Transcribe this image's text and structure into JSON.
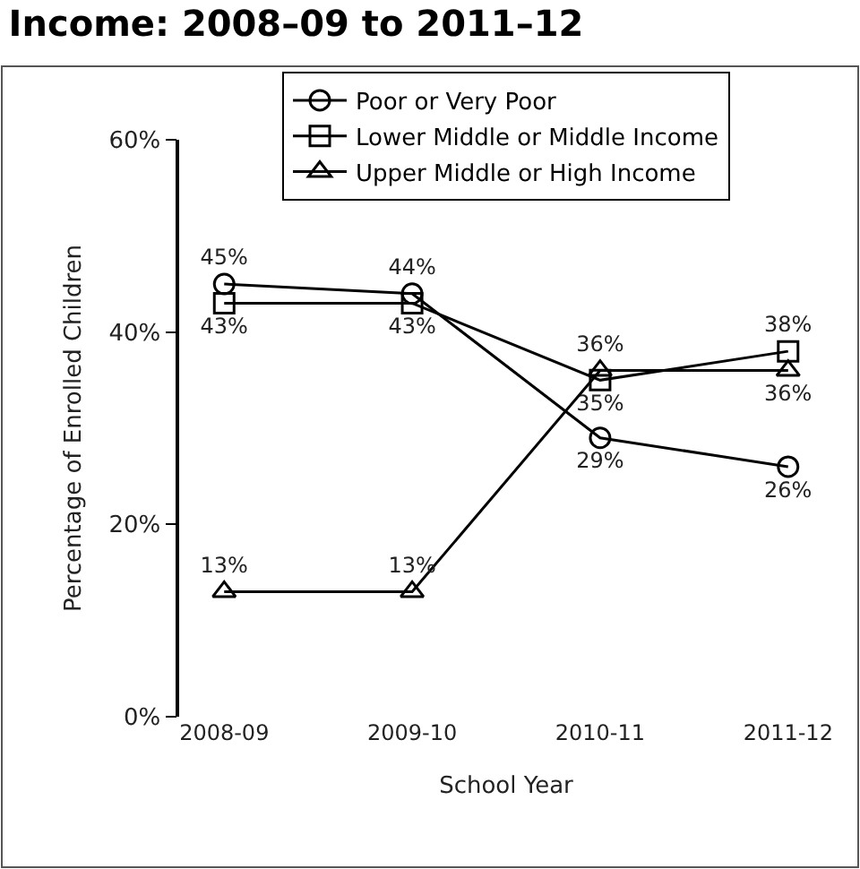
{
  "chart_data": {
    "type": "line",
    "title": "Income: 2008–09 to 2011–12",
    "xlabel": "School Year",
    "ylabel": "Percentage of Enrolled Children",
    "categories": [
      "2008-09",
      "2009-10",
      "2010-11",
      "2011-12"
    ],
    "series": [
      {
        "name": "Poor or Very Poor",
        "color": "#000000",
        "marker": "circle",
        "values": [
          45,
          44,
          29,
          26
        ],
        "value_labels": [
          "45%",
          "44%",
          "29%",
          "26%"
        ]
      },
      {
        "name": "Lower Middle or Middle Income",
        "color": "#000000",
        "marker": "square",
        "values": [
          43,
          43,
          35,
          38
        ],
        "value_labels": [
          "43%",
          "43%",
          "35%",
          "38%"
        ]
      },
      {
        "name": "Upper Middle or High Income",
        "color": "#000000",
        "marker": "triangle",
        "values": [
          13,
          13,
          36,
          36
        ],
        "value_labels": [
          "13%",
          "13%",
          "36%",
          "36%"
        ]
      }
    ],
    "ylim": [
      0,
      60
    ],
    "yticks": [
      {
        "value": 0,
        "label": "0%"
      },
      {
        "value": 20,
        "label": "20%"
      },
      {
        "value": 40,
        "label": "40%"
      },
      {
        "value": 60,
        "label": "60%"
      }
    ],
    "grid": false,
    "legend": "top",
    "line_style": "solid"
  }
}
